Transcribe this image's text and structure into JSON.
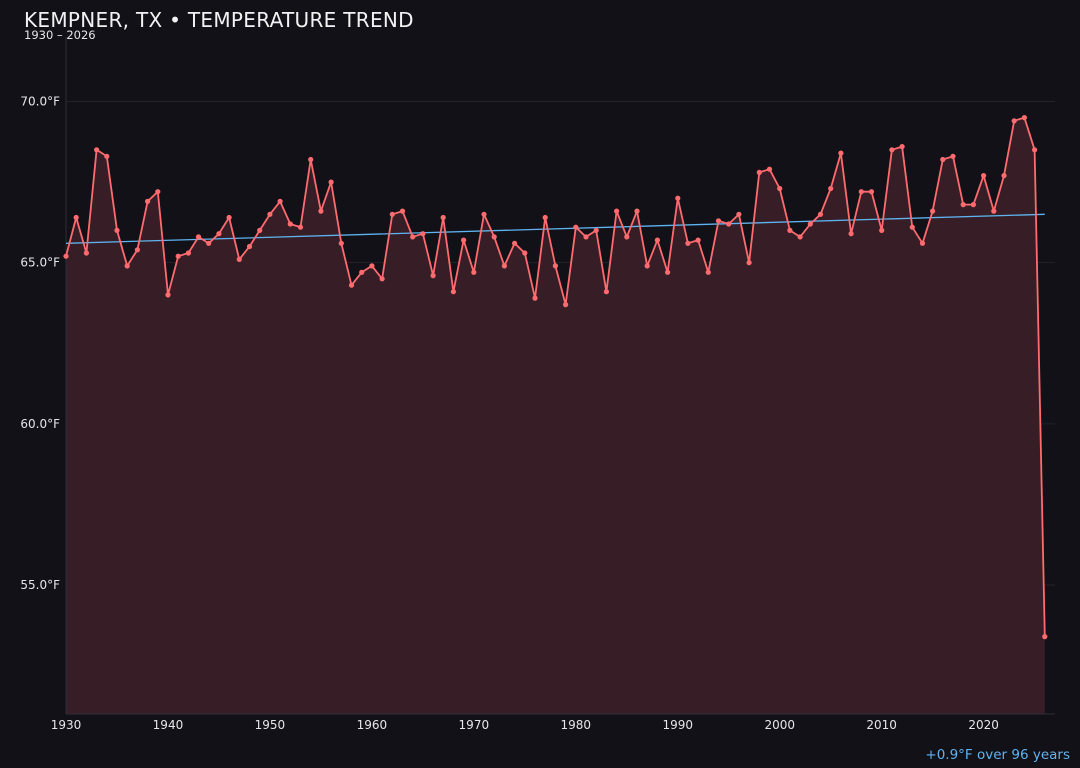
{
  "header": {
    "title": "KEMPNER, TX • TEMPERATURE TREND",
    "subtitle": "1930 – 2026"
  },
  "footer": {
    "trend_note": "+0.9°F over 96 years"
  },
  "colors": {
    "background": "#121117",
    "series_line": "#ff6b6f",
    "series_fill": "#371e26",
    "trend_line": "#5eb3f0",
    "grid": "#24222a",
    "axis": "#2e2c34"
  },
  "chart_data": {
    "type": "area",
    "title": "KEMPNER, TX • TEMPERATURE TREND",
    "subtitle": "1930 – 2026",
    "xlabel": "",
    "ylabel": "",
    "xlim": [
      1930,
      2027
    ],
    "ylim": [
      51,
      72
    ],
    "x_ticks": [
      1930,
      1940,
      1950,
      1960,
      1970,
      1980,
      1990,
      2000,
      2010,
      2020
    ],
    "y_ticks": [
      55,
      60,
      65,
      70
    ],
    "y_tick_labels": [
      "55.0°F",
      "60.0°F",
      "65.0°F",
      "70.0°F"
    ],
    "grid": "horizontal",
    "legend": "none",
    "series": [
      {
        "x": [
          1930,
          1931,
          1932,
          1933,
          1934,
          1935,
          1936,
          1937,
          1938,
          1939,
          1940,
          1941,
          1942,
          1943,
          1944,
          1945,
          1946,
          1947,
          1948,
          1949,
          1950,
          1951,
          1952,
          1953,
          1954,
          1955,
          1956,
          1957,
          1958,
          1959,
          1960,
          1961,
          1962,
          1963,
          1964,
          1965,
          1966,
          1967,
          1968,
          1969,
          1970,
          1971,
          1972,
          1973,
          1974,
          1975,
          1976,
          1977,
          1978,
          1979,
          1980,
          1981,
          1982,
          1983,
          1984,
          1985,
          1986,
          1987,
          1988,
          1989,
          1990,
          1991,
          1992,
          1993,
          1994,
          1995,
          1996,
          1997,
          1998,
          1999,
          2000,
          2001,
          2002,
          2003,
          2004,
          2005,
          2006,
          2007,
          2008,
          2009,
          2010,
          2011,
          2012,
          2013,
          2014,
          2015,
          2016,
          2017,
          2018,
          2019,
          2020,
          2021,
          2022,
          2023,
          2024,
          2025,
          2026
        ],
        "values": [
          65.2,
          66.4,
          65.3,
          68.5,
          68.3,
          66.0,
          64.9,
          65.4,
          66.9,
          67.2,
          64.0,
          65.2,
          65.3,
          65.8,
          65.6,
          65.9,
          66.4,
          65.1,
          65.5,
          66.0,
          66.5,
          66.9,
          66.2,
          66.1,
          68.2,
          66.6,
          67.5,
          65.6,
          64.3,
          64.7,
          64.9,
          64.5,
          66.5,
          66.6,
          65.8,
          65.9,
          64.6,
          66.4,
          64.1,
          65.7,
          64.7,
          66.5,
          65.8,
          64.9,
          65.6,
          65.3,
          63.9,
          66.4,
          64.9,
          63.7,
          66.1,
          65.8,
          66.0,
          64.1,
          66.6,
          65.8,
          66.6,
          64.9,
          65.7,
          64.7,
          67.0,
          65.6,
          65.7,
          64.7,
          66.3,
          66.2,
          66.5,
          65.0,
          67.8,
          67.9,
          67.3,
          66.0,
          65.8,
          66.2,
          66.5,
          67.3,
          68.4,
          65.9,
          67.2,
          67.2,
          66.0,
          68.5,
          68.6,
          66.1,
          65.6,
          66.6,
          68.2,
          68.3,
          66.8,
          66.8,
          67.7,
          66.6,
          67.7,
          69.4,
          69.5,
          68.5,
          53.4
        ]
      }
    ],
    "trend_line": {
      "x": [
        1930,
        2026
      ],
      "values": [
        65.6,
        66.5
      ]
    },
    "annotations": [
      "+0.9°F over 96 years"
    ]
  }
}
